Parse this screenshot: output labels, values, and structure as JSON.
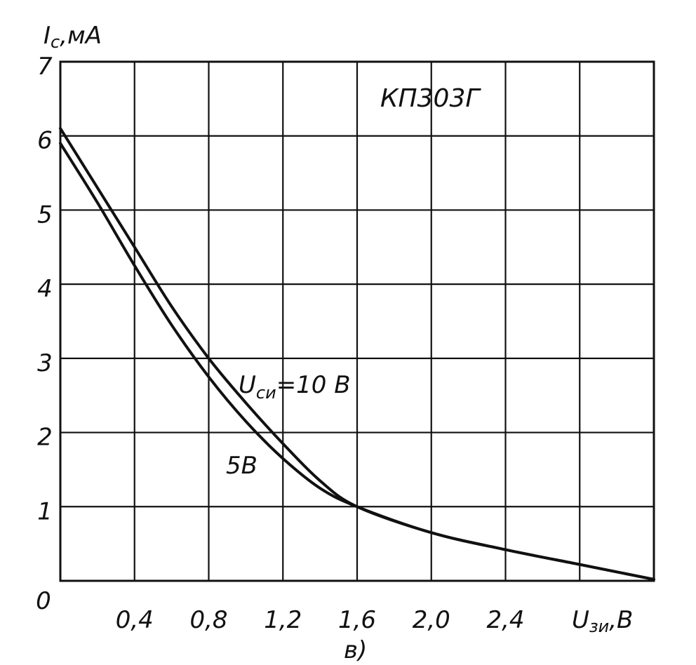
{
  "chart_data": {
    "type": "line",
    "device": "КП303Г",
    "caption": "в)",
    "ylabel": {
      "symbol": "I",
      "sub": "с",
      "unit": ",мА"
    },
    "xlabel": {
      "symbol": "U",
      "sub": "зи",
      "unit": ",В"
    },
    "xlim": [
      0,
      3.2
    ],
    "ylim": [
      0,
      7
    ],
    "x_ticks": [
      {
        "value": 0.4,
        "label": "0,4"
      },
      {
        "value": 0.8,
        "label": "0,8"
      },
      {
        "value": 1.2,
        "label": "1,2"
      },
      {
        "value": 1.6,
        "label": "1,6"
      },
      {
        "value": 2.0,
        "label": "2,0"
      },
      {
        "value": 2.4,
        "label": "2,4"
      }
    ],
    "y_ticks": [
      {
        "value": 0,
        "label": "0"
      },
      {
        "value": 1,
        "label": "1"
      },
      {
        "value": 2,
        "label": "2"
      },
      {
        "value": 3,
        "label": "3"
      },
      {
        "value": 4,
        "label": "4"
      },
      {
        "value": 5,
        "label": "5"
      },
      {
        "value": 6,
        "label": "6"
      },
      {
        "value": 7,
        "label": "7"
      }
    ],
    "grid_x": [
      0.4,
      0.8,
      1.2,
      1.6,
      2.0,
      2.4,
      2.8
    ],
    "grid_y": [
      1,
      2,
      3,
      4,
      5,
      6
    ],
    "series": [
      {
        "name": "10 В",
        "x": [
          0,
          0.2,
          0.4,
          0.6,
          0.8,
          1.0,
          1.2,
          1.4,
          1.6,
          2.0,
          2.4,
          2.8,
          3.2
        ],
        "y": [
          6.1,
          5.3,
          4.5,
          3.7,
          3.0,
          2.4,
          1.85,
          1.35,
          1.0,
          0.65,
          0.42,
          0.22,
          0.02
        ]
      },
      {
        "name": "5 В",
        "x": [
          0,
          0.2,
          0.4,
          0.6,
          0.8,
          1.0,
          1.2,
          1.4,
          1.6,
          2.0,
          2.4,
          2.8,
          3.2
        ],
        "y": [
          5.9,
          5.1,
          4.25,
          3.45,
          2.75,
          2.15,
          1.65,
          1.25,
          1.0,
          0.65,
          0.42,
          0.22,
          0.02
        ]
      }
    ],
    "annotations": {
      "series1": {
        "symbol": "U",
        "sub": "си",
        "rest": "=10 В"
      },
      "series2": "5В"
    }
  }
}
